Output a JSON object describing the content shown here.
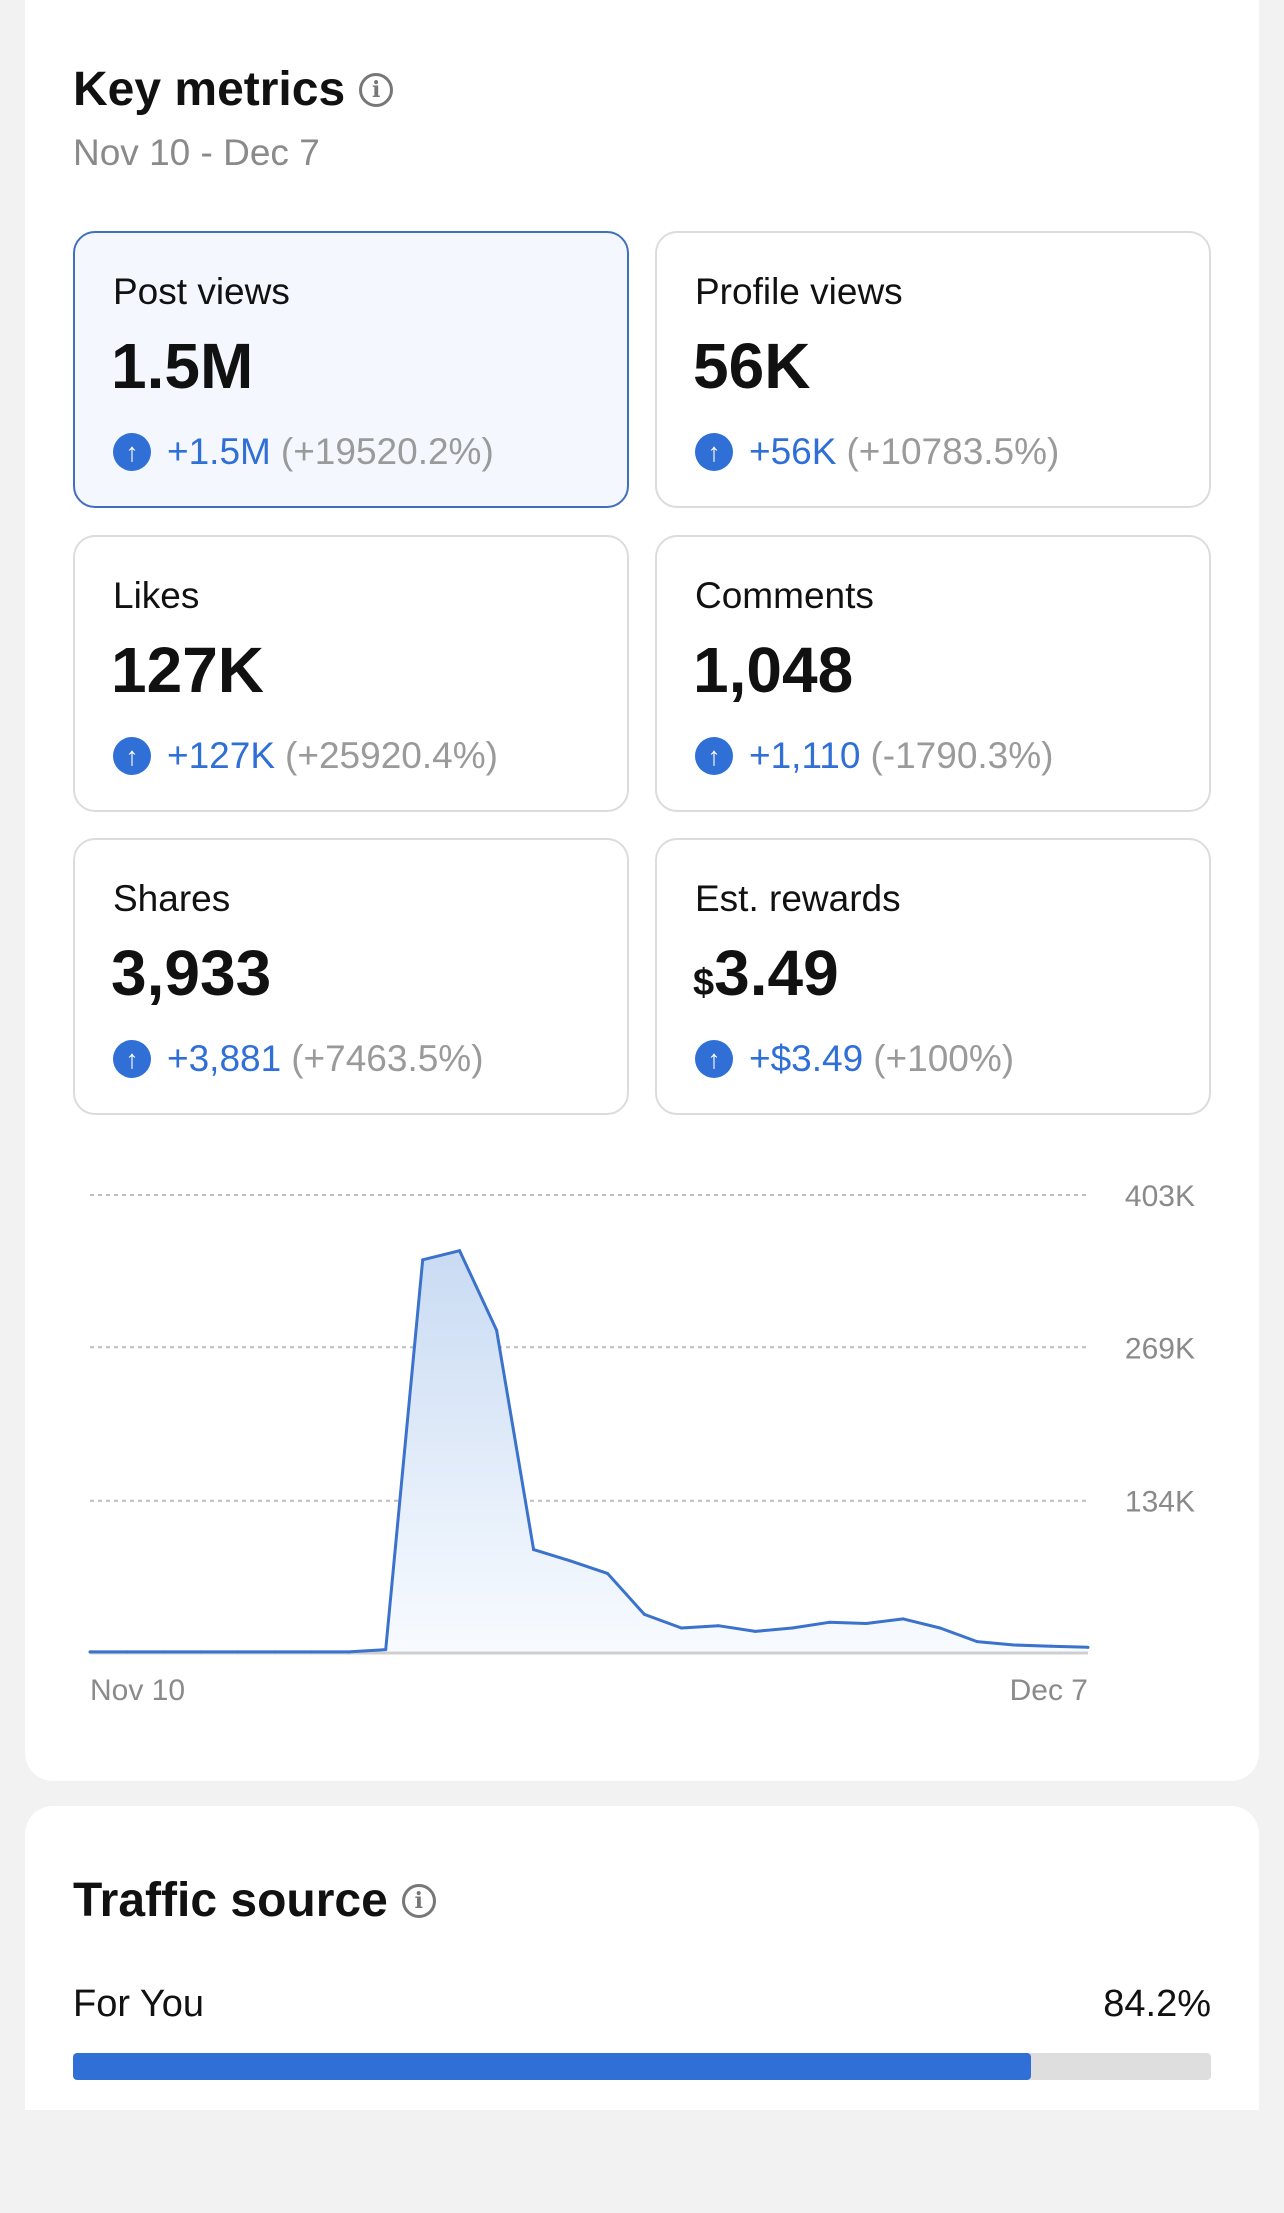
{
  "key_metrics": {
    "title": "Key metrics",
    "date_range": "Nov 10 - Dec 7",
    "cards": [
      {
        "label": "Post views",
        "currency": "",
        "value": "1.5M",
        "change": "+1.5M",
        "change_pct": "(+19520.2%)",
        "selected": true
      },
      {
        "label": "Profile views",
        "currency": "",
        "value": "56K",
        "change": "+56K",
        "change_pct": "(+10783.5%)",
        "selected": false
      },
      {
        "label": "Likes",
        "currency": "",
        "value": "127K",
        "change": "+127K",
        "change_pct": "(+25920.4%)",
        "selected": false
      },
      {
        "label": "Comments",
        "currency": "",
        "value": "1,048",
        "change": "+1,110",
        "change_pct": "(-1790.3%)",
        "selected": false
      },
      {
        "label": "Shares",
        "currency": "",
        "value": "3,933",
        "change": "+3,881",
        "change_pct": "(+7463.5%)",
        "selected": false
      },
      {
        "label": "Est. rewards",
        "currency": "$",
        "value": "3.49",
        "change": "+$3.49",
        "change_pct": "(+100%)",
        "selected": false
      }
    ]
  },
  "chart_data": {
    "type": "area",
    "title": "",
    "x_start_label": "Nov 10",
    "x_end_label": "Dec 7",
    "y_ticks": [
      134,
      269,
      403
    ],
    "y_tick_labels": [
      "134K",
      "269K",
      "403K"
    ],
    "ylim": [
      0,
      403
    ],
    "yunit": "K",
    "values": [
      1,
      1,
      1,
      1,
      1,
      1,
      1,
      1,
      3,
      346,
      354,
      284,
      91,
      81,
      70,
      34,
      22,
      24,
      19,
      22,
      27,
      26,
      30,
      22,
      10,
      7,
      6,
      5
    ],
    "color": "#3a72cc",
    "grid": true
  },
  "traffic_source": {
    "title": "Traffic source",
    "items": [
      {
        "label": "For You",
        "value": "84.2%",
        "fraction": 0.842
      }
    ]
  }
}
